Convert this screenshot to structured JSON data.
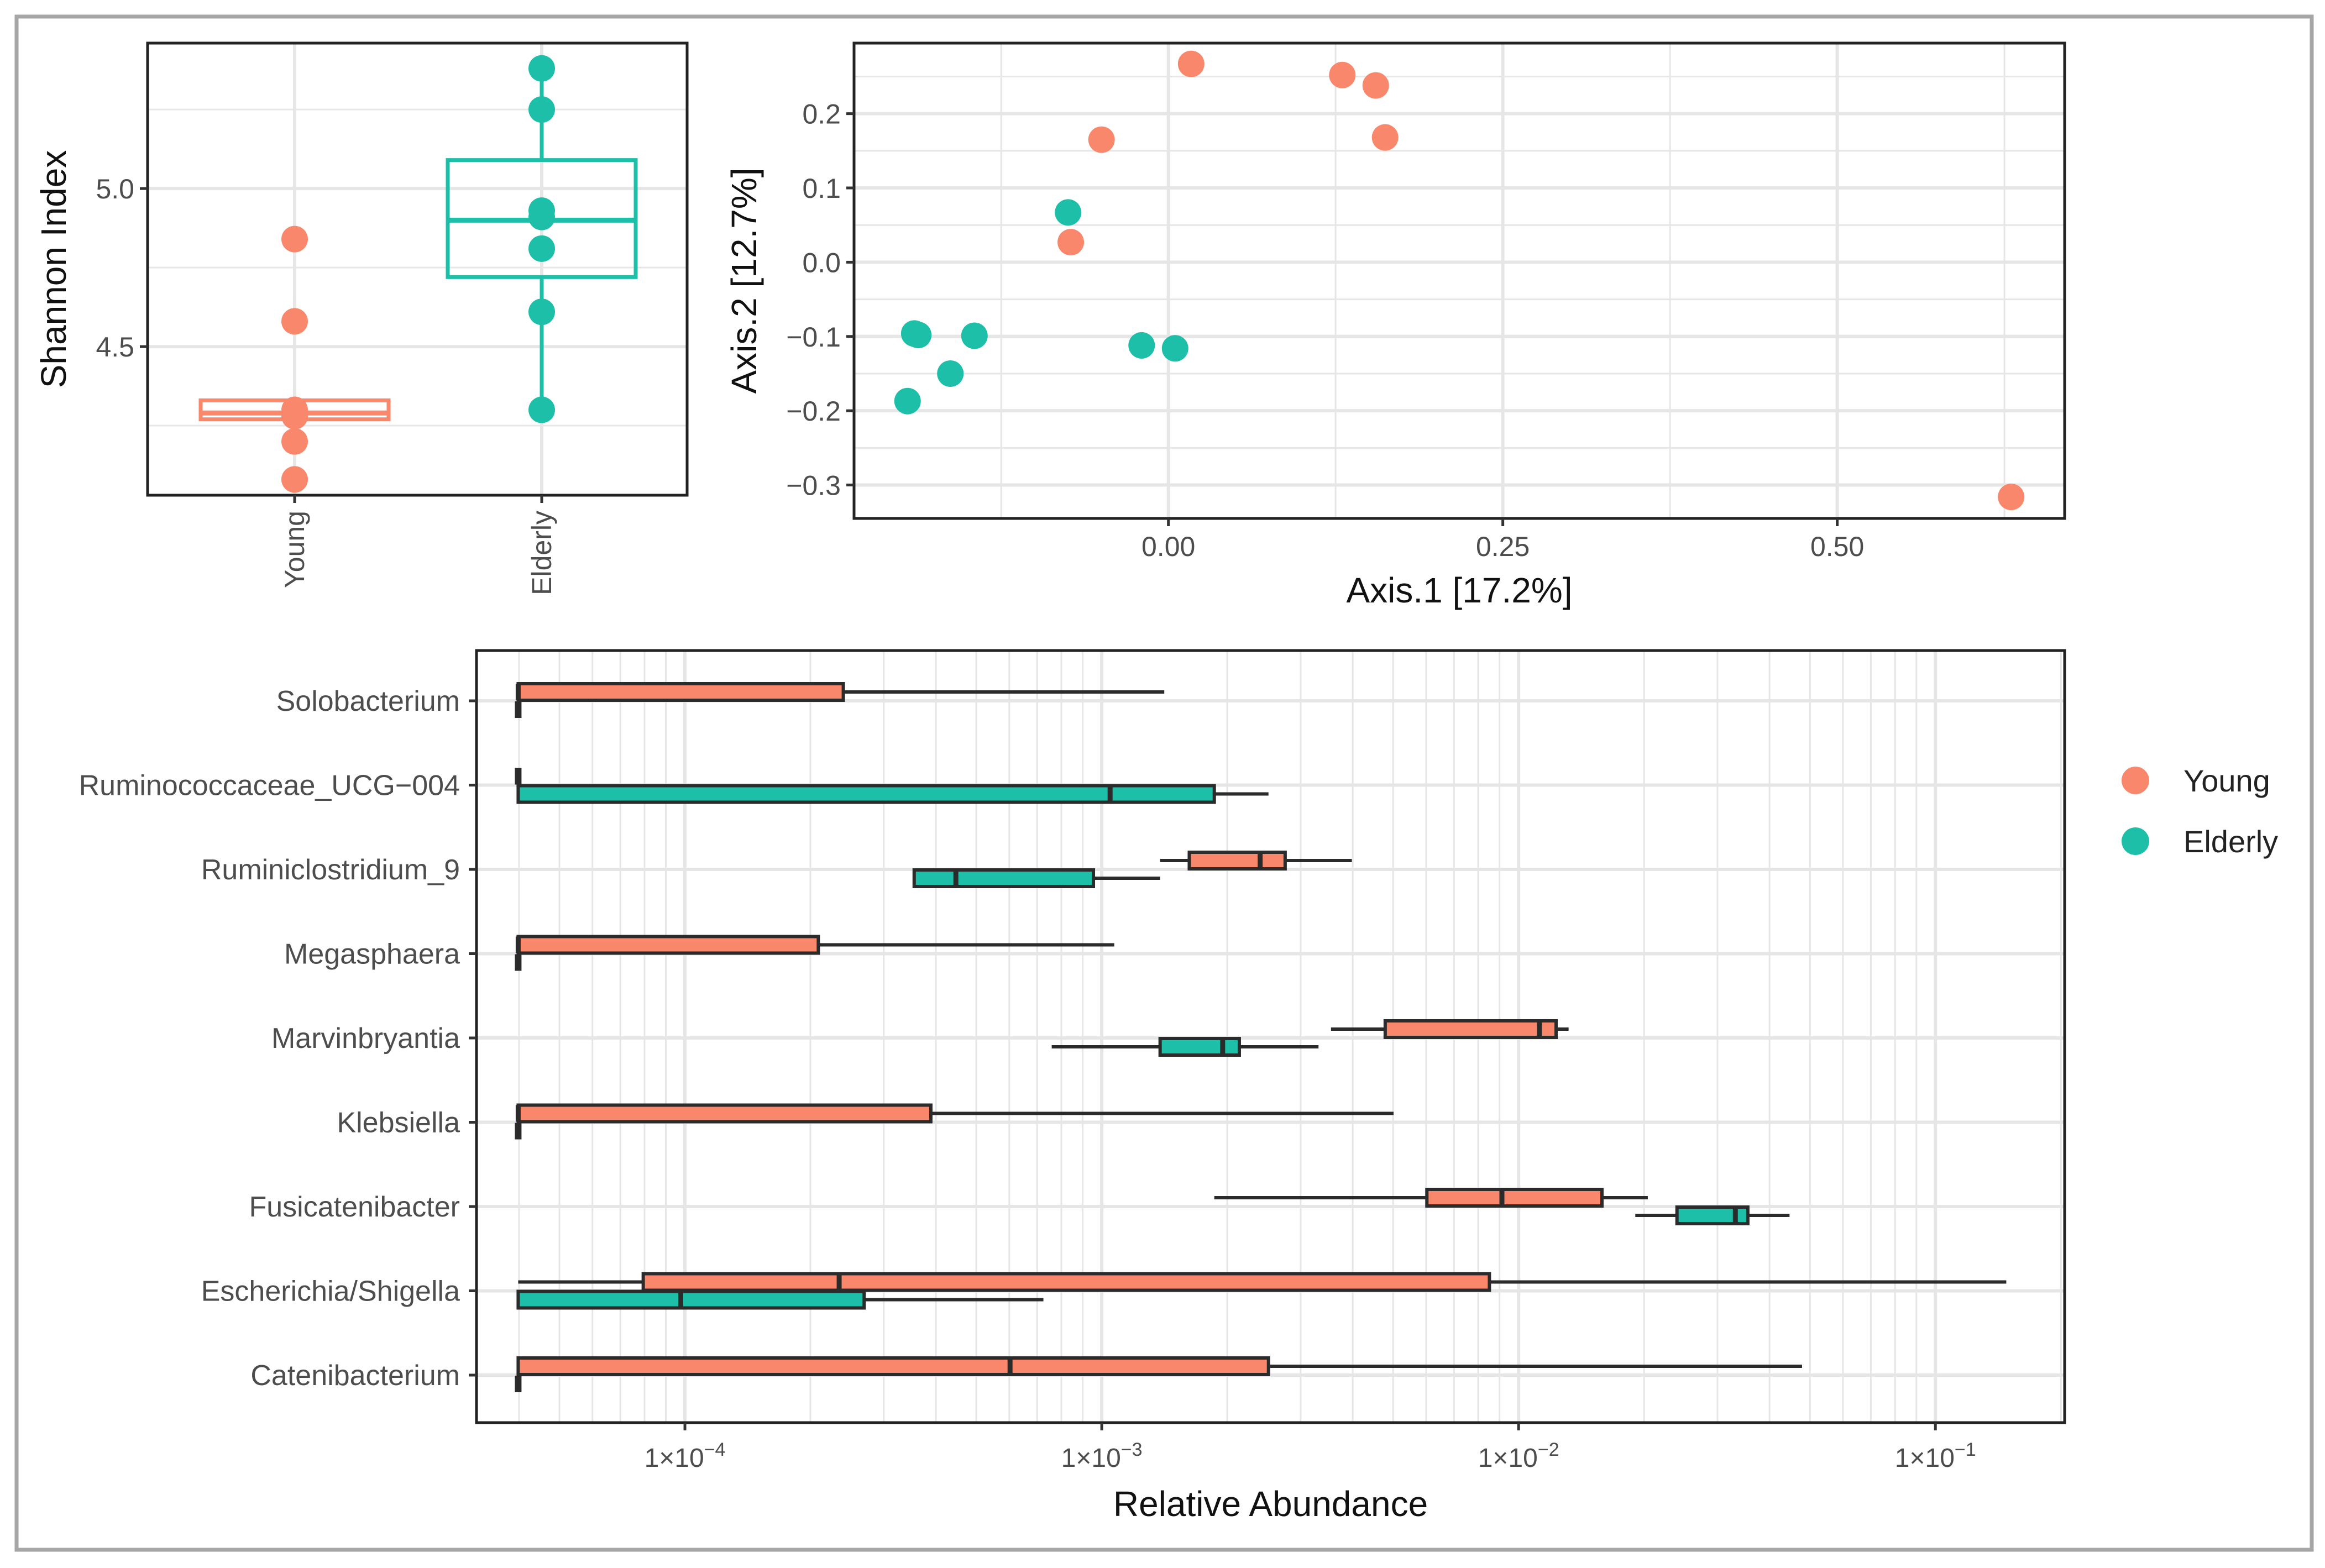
{
  "colors": {
    "young": "#F8876B",
    "elderly": "#1DBFA8",
    "box_edge_dark": "#2b2b2b",
    "grid": "#e6e6e6",
    "frame": "#222222",
    "outer_border": "#a6a6a6"
  },
  "chart_data": [
    {
      "id": "alpha",
      "type": "box",
      "title": "",
      "xlabel": "",
      "ylabel": "Shannon Index",
      "categories": [
        "Young",
        "Elderly"
      ],
      "ylim": [
        4.03,
        5.46
      ],
      "yticks": [
        4.5,
        5.0
      ],
      "ytick_labels": [
        "4.5",
        "5.0"
      ],
      "groups": [
        {
          "name": "Young",
          "color_key": "young",
          "points": [
            4.84,
            4.58,
            4.3,
            4.28,
            4.2,
            4.08
          ],
          "q1": 4.27,
          "median": 4.29,
          "q3": 4.33,
          "whisker_low": 4.27,
          "whisker_high": 4.33
        },
        {
          "name": "Elderly",
          "color_key": "elderly",
          "points": [
            5.38,
            5.25,
            4.93,
            4.91,
            4.81,
            4.61,
            4.3
          ],
          "q1": 4.72,
          "median": 4.9,
          "q3": 5.09,
          "whisker_low": 4.3,
          "whisker_high": 5.38
        }
      ]
    },
    {
      "id": "ordination",
      "type": "scatter",
      "title": "",
      "xlabel": "Axis.1   [17.2%]",
      "ylabel": "Axis.2   [12.7%]",
      "xlim": [
        -0.235,
        0.67
      ],
      "ylim": [
        -0.345,
        0.295
      ],
      "xticks": [
        0.0,
        0.25,
        0.5
      ],
      "xtick_labels": [
        "0.00",
        "0.25",
        "0.50"
      ],
      "yticks": [
        -0.3,
        -0.2,
        -0.1,
        0.0,
        0.1,
        0.2
      ],
      "ytick_labels": [
        "−0.3",
        "−0.2",
        "−0.1",
        "0.0",
        "0.1",
        "0.2"
      ],
      "series": [
        {
          "name": "Young",
          "color_key": "young",
          "x": [
            0.017,
            0.13,
            0.155,
            0.162,
            -0.05,
            -0.073,
            0.63
          ],
          "y": [
            0.267,
            0.252,
            0.238,
            0.168,
            0.165,
            0.027,
            -0.316
          ]
        },
        {
          "name": "Elderly",
          "color_key": "elderly",
          "x": [
            -0.075,
            -0.19,
            -0.187,
            -0.145,
            -0.02,
            0.005,
            -0.163,
            -0.195
          ],
          "y": [
            0.067,
            -0.096,
            -0.098,
            -0.099,
            -0.112,
            -0.116,
            -0.15,
            -0.187
          ]
        }
      ]
    },
    {
      "id": "abundance",
      "type": "box",
      "orientation": "horizontal",
      "scale": "log10",
      "title": "",
      "xlabel": "Relative Abundance",
      "ylabel": "",
      "xlim_log10": [
        -4.5,
        -0.69
      ],
      "xticks_log10": [
        -4,
        -3,
        -2,
        -1
      ],
      "xtick_labels": [
        {
          "base": "1×10",
          "exp": "−4"
        },
        {
          "base": "1×10",
          "exp": "−3"
        },
        {
          "base": "1×10",
          "exp": "−2"
        },
        {
          "base": "1×10",
          "exp": "−1"
        }
      ],
      "categories": [
        "Solobacterium",
        "Ruminococcaceae_UCG−004",
        "Ruminiclostridium_9",
        "Megasphaera",
        "Marvinbryantia",
        "Klebsiella",
        "Fusicatenibacter",
        "Escherichia/Shigella",
        "Catenibacterium"
      ],
      "floor_log10": -4.4,
      "boxes": [
        {
          "taxon": "Solobacterium",
          "group": "Young",
          "wlo": -4.4,
          "q1": -4.4,
          "median": -4.4,
          "q3": -3.62,
          "whi": -2.85
        },
        {
          "taxon": "Solobacterium",
          "group": "Elderly",
          "wlo": -4.4,
          "q1": -4.4,
          "median": -4.4,
          "q3": -4.4,
          "whi": -4.4
        },
        {
          "taxon": "Ruminococcaceae_UCG−004",
          "group": "Young",
          "wlo": -4.4,
          "q1": -4.4,
          "median": -4.4,
          "q3": -4.4,
          "whi": -4.4
        },
        {
          "taxon": "Ruminococcaceae_UCG−004",
          "group": "Elderly",
          "wlo": -4.4,
          "q1": -4.4,
          "median": -2.98,
          "q3": -2.73,
          "whi": -2.6
        },
        {
          "taxon": "Ruminiclostridium_9",
          "group": "Young",
          "wlo": -2.86,
          "q1": -2.79,
          "median": -2.62,
          "q3": -2.56,
          "whi": -2.4
        },
        {
          "taxon": "Ruminiclostridium_9",
          "group": "Elderly",
          "wlo": -3.45,
          "q1": -3.45,
          "median": -3.35,
          "q3": -3.02,
          "whi": -2.86
        },
        {
          "taxon": "Megasphaera",
          "group": "Young",
          "wlo": -4.4,
          "q1": -4.4,
          "median": -4.4,
          "q3": -3.68,
          "whi": -2.97
        },
        {
          "taxon": "Megasphaera",
          "group": "Elderly",
          "wlo": -4.4,
          "q1": -4.4,
          "median": -4.4,
          "q3": -4.4,
          "whi": -4.4
        },
        {
          "taxon": "Marvinbryantia",
          "group": "Young",
          "wlo": -2.45,
          "q1": -2.32,
          "median": -1.95,
          "q3": -1.91,
          "whi": -1.88
        },
        {
          "taxon": "Marvinbryantia",
          "group": "Elderly",
          "wlo": -3.12,
          "q1": -2.86,
          "median": -2.71,
          "q3": -2.67,
          "whi": -2.48
        },
        {
          "taxon": "Klebsiella",
          "group": "Young",
          "wlo": -4.4,
          "q1": -4.4,
          "median": -4.4,
          "q3": -3.41,
          "whi": -2.3
        },
        {
          "taxon": "Klebsiella",
          "group": "Elderly",
          "wlo": -4.4,
          "q1": -4.4,
          "median": -4.4,
          "q3": -4.4,
          "whi": -4.4
        },
        {
          "taxon": "Fusicatenibacter",
          "group": "Young",
          "wlo": -2.73,
          "q1": -2.22,
          "median": -2.04,
          "q3": -1.8,
          "whi": -1.69
        },
        {
          "taxon": "Fusicatenibacter",
          "group": "Elderly",
          "wlo": -1.72,
          "q1": -1.62,
          "median": -1.48,
          "q3": -1.45,
          "whi": -1.35
        },
        {
          "taxon": "Escherichia/Shigella",
          "group": "Young",
          "wlo": -4.4,
          "q1": -4.1,
          "median": -3.63,
          "q3": -2.07,
          "whi": -0.83
        },
        {
          "taxon": "Escherichia/Shigella",
          "group": "Elderly",
          "wlo": -4.4,
          "q1": -4.4,
          "median": -4.01,
          "q3": -3.57,
          "whi": -3.14
        },
        {
          "taxon": "Catenibacterium",
          "group": "Young",
          "wlo": -4.4,
          "q1": -4.4,
          "median": -3.22,
          "q3": -2.6,
          "whi": -1.32
        },
        {
          "taxon": "Catenibacterium",
          "group": "Elderly",
          "wlo": -4.4,
          "q1": -4.4,
          "median": -4.4,
          "q3": -4.4,
          "whi": -4.4
        }
      ]
    }
  ],
  "legend": {
    "position": "right",
    "items": [
      {
        "label": "Young",
        "color_key": "young"
      },
      {
        "label": "Elderly",
        "color_key": "elderly"
      }
    ]
  }
}
